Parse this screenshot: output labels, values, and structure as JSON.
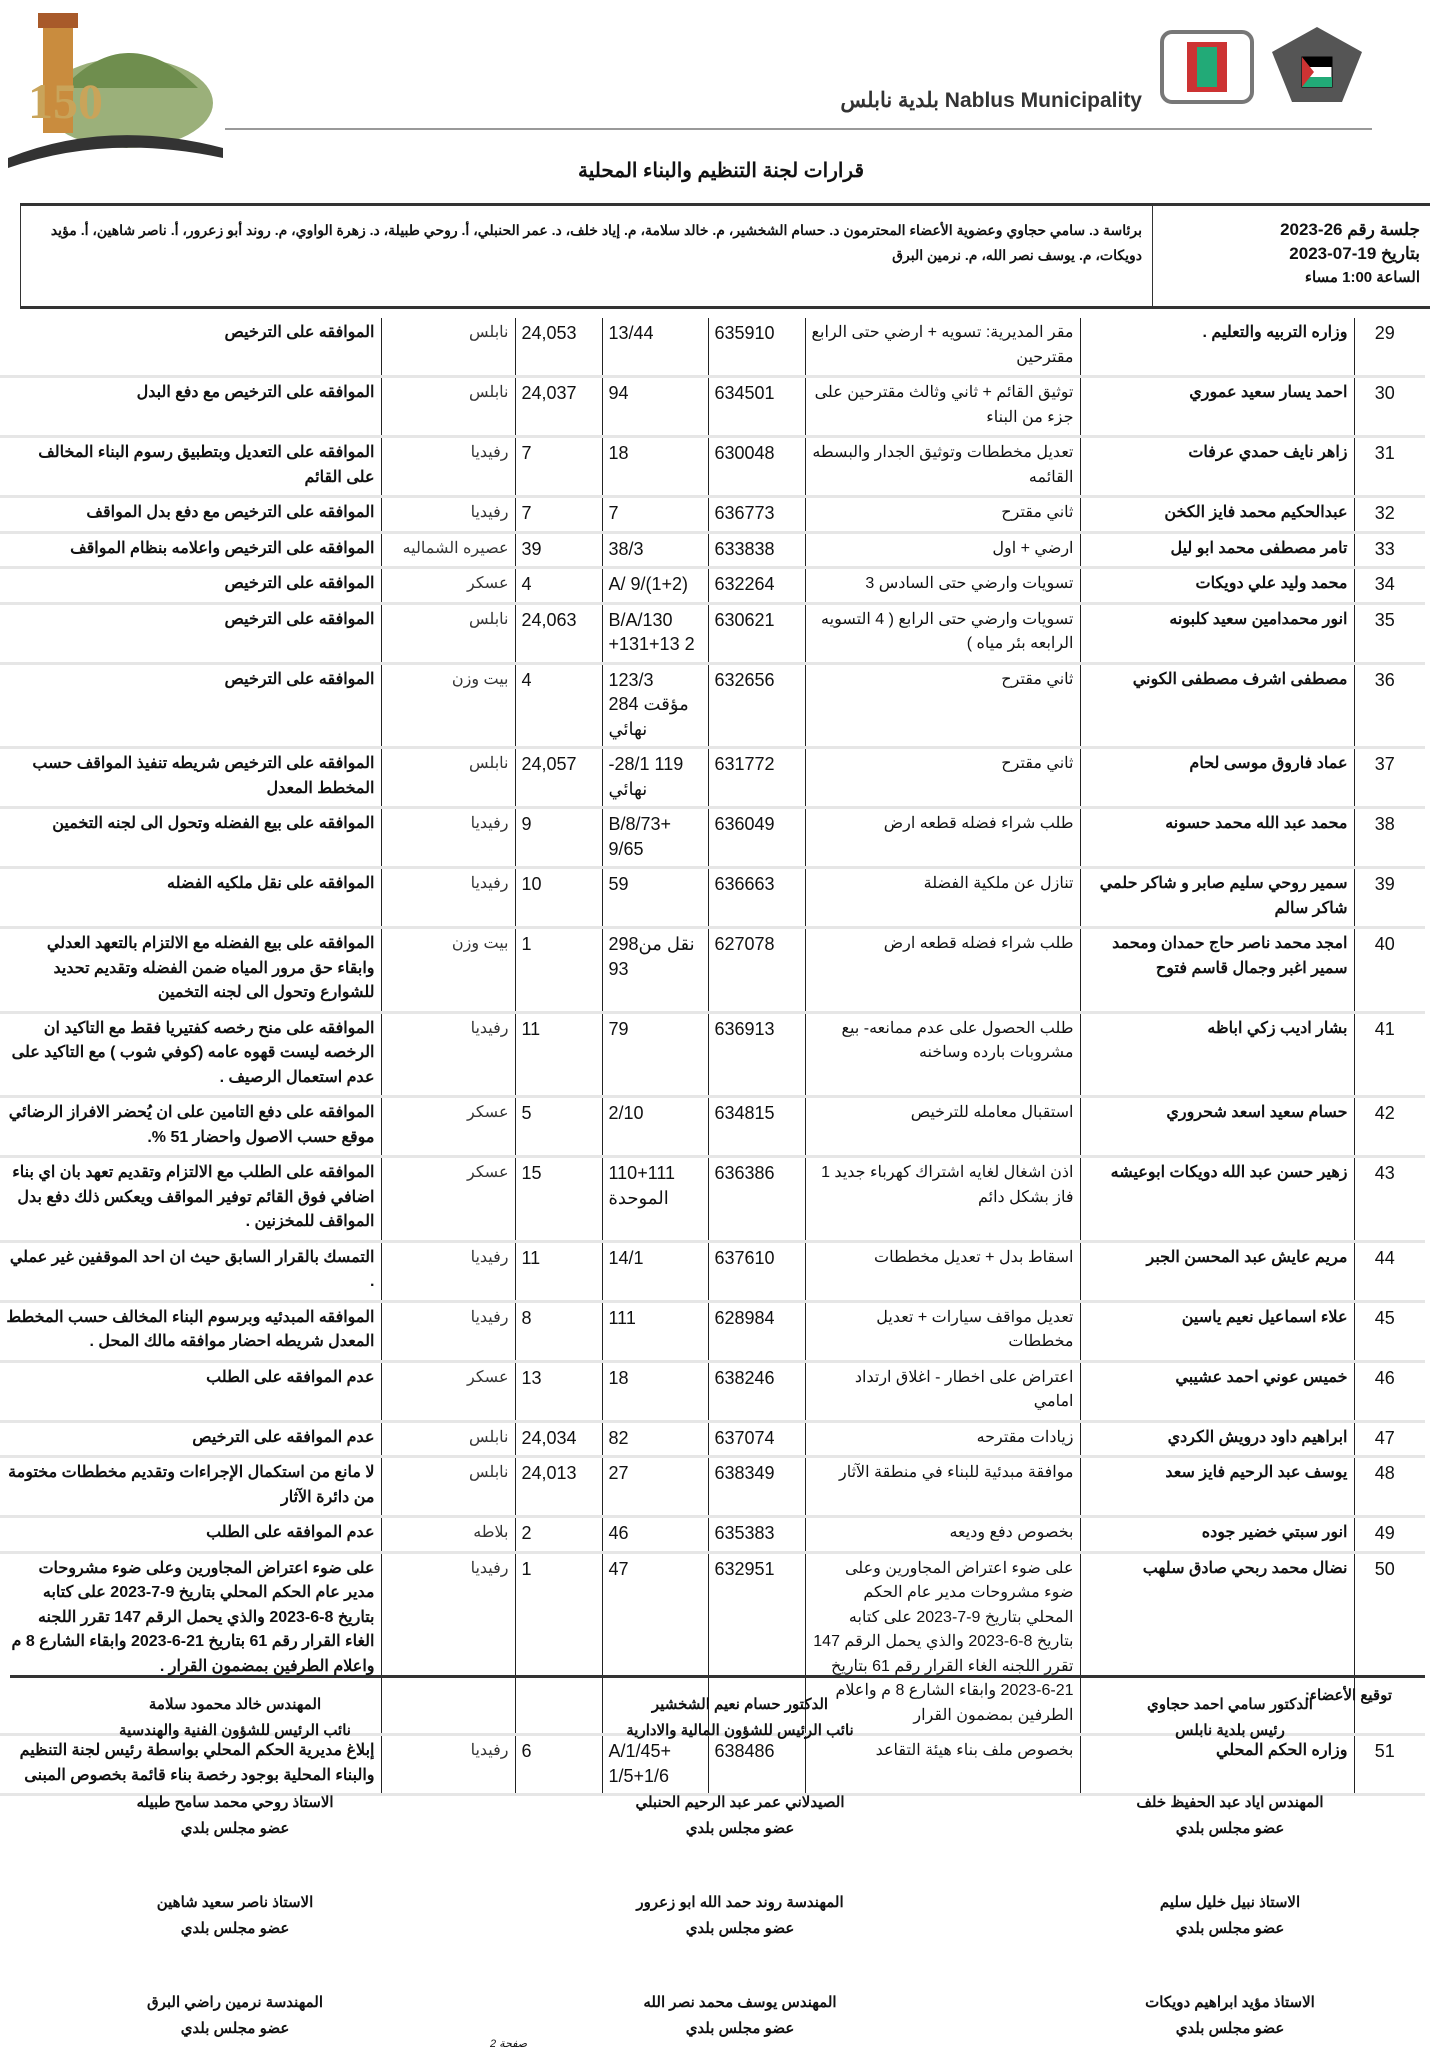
{
  "header": {
    "municipality": "Nablus Municipality بلدية نابلس",
    "title": "قرارات لجنة التنظيم والبناء المحلية"
  },
  "session": {
    "number": "جلسة رقم 26-2023",
    "date": "بتاريخ 19-07-2023",
    "time": "الساعة 1:00 مساء",
    "members": "برئاسة د. سامي حجاوي وعضوية الأعضاء المحترمون د. حسام الشخشير، م. خالد سلامة، م. إياد خلف، د. عمر الحنبلي، أ. روحي طبيلة، د. زهرة الواوي، م. روند أبو زعرور، أ. ناصر شاهين، أ. مؤيد دويكات، م. يوسف نصر الله، م. نرمين البرق"
  },
  "rows": [
    {
      "n": "29",
      "name": "وزاره التربيه والتعليم .",
      "request": "مقر المديرية: تسويه + ارضي حتى الرابع مقترحين",
      "file": "635910",
      "parcel": "13/44",
      "basin": "24,053",
      "locality": "نابلس",
      "decision": "الموافقه على الترخيص"
    },
    {
      "n": "30",
      "name": "احمد يسار سعيد عموري",
      "request": "توثيق القائم + ثاني وثالث مقترحين على جزء من البناء",
      "file": "634501",
      "parcel": "94",
      "basin": "24,037",
      "locality": "نابلس",
      "decision": "الموافقه على الترخيص مع دفع البدل"
    },
    {
      "n": "31",
      "name": "زاهر نايف حمدي عرفات",
      "request": "تعديل مخططات وتوثيق الجدار والبسطه القائمه",
      "file": "630048",
      "parcel": "18",
      "basin": "7",
      "locality": "رفيديا",
      "decision": "الموافقه على التعديل وبتطبيق رسوم البناء المخالف على القائم"
    },
    {
      "n": "32",
      "name": "عبدالحكيم محمد فايز الكخن",
      "request": "ثاني مقترح",
      "file": "636773",
      "parcel": "7",
      "basin": "7",
      "locality": "رفيديا",
      "decision": "الموافقه على الترخيص مع دفع بدل المواقف"
    },
    {
      "n": "33",
      "name": "تامر مصطفى محمد ابو ليل",
      "request": "ارضي + اول",
      "file": "633838",
      "parcel": "38/3",
      "basin": "39",
      "locality": "عصيره الشماليه",
      "decision": "الموافقه على الترخيص واعلامه بنظام المواقف"
    },
    {
      "n": "34",
      "name": "محمد وليد علي دويكات",
      "request": "تسويات وارضي حتى السادس 3",
      "file": "632264",
      "parcel": "A/ 9/(1+2)",
      "basin": "4",
      "locality": "عسكر",
      "decision": "الموافقه على الترخيص"
    },
    {
      "n": "35",
      "name": "انور محمدامين سعيد كلبونه",
      "request": "تسويات وارضي حتى الرابع ( 4 التسويه الرابعه بئر مياه )",
      "file": "630621",
      "parcel": "B/A/130 +131+13 2",
      "basin": "24,063",
      "locality": "نابلس",
      "decision": "الموافقه على الترخيص"
    },
    {
      "n": "36",
      "name": "مصطفى اشرف مصطفى الكوني",
      "request": "ثاني مقترح",
      "file": "632656",
      "parcel": "123/3 مؤقت 284 نهائي",
      "basin": "4",
      "locality": "بيت وزن",
      "decision": "الموافقه على الترخيص"
    },
    {
      "n": "37",
      "name": "عماد فاروق موسى لحام",
      "request": "ثاني مقترح",
      "file": "631772",
      "parcel": "-28/1 119 نهائي",
      "basin": "24,057",
      "locality": "نابلس",
      "decision": "الموافقه على الترخيص شريطه تنفيذ المواقف حسب المخطط المعدل"
    },
    {
      "n": "38",
      "name": "محمد عبد الله محمد حسونه",
      "request": "طلب شراء فضله قطعه ارض",
      "file": "636049",
      "parcel": "B/8/73+ 9/65",
      "basin": "9",
      "locality": "رفيديا",
      "decision": "الموافقه على بيع الفضله وتحول الى لجنه التخمين"
    },
    {
      "n": "39",
      "name": "سمير روحي سليم صابر و شاكر حلمي شاكر سالم",
      "request": "تنازل عن ملكية الفضلة",
      "file": "636663",
      "parcel": "59",
      "basin": "10",
      "locality": "رفيديا",
      "decision": "الموافقه على نقل ملكيه الفضله"
    },
    {
      "n": "40",
      "name": "امجد محمد ناصر حاج حمدان ومحمد سمير اغبر وجمال قاسم فتوح",
      "request": "طلب شراء فضله قطعه ارض",
      "file": "627078",
      "parcel": "298نقل من 93",
      "basin": "1",
      "locality": "بيت وزن",
      "decision": "الموافقه على بيع الفضله مع الالتزام بالتعهد العدلي وابقاء حق مرور المياه ضمن الفضله وتقديم تحديد للشوارع وتحول الى لجنه التخمين"
    },
    {
      "n": "41",
      "name": "بشار اديب زكي اباظه",
      "request": "طلب الحصول على عدم ممانعه- بيع مشروبات بارده وساخنه",
      "file": "636913",
      "parcel": "79",
      "basin": "11",
      "locality": "رفيديا",
      "decision": "الموافقه على منح رخصه كفتيريا فقط مع التاكيد ان الرخصه ليست قهوه عامه (كوفي شوب ) مع التاكيد على عدم استعمال الرصيف ."
    },
    {
      "n": "42",
      "name": "حسام سعيد اسعد شحروري",
      "request": "استقبال معامله للترخيص",
      "file": "634815",
      "parcel": "2/10",
      "basin": "5",
      "locality": "عسكر",
      "decision": "الموافقه على دفع التامين على ان يُحضر الافراز الرضائي موقع حسب الاصول واحضار 51 %."
    },
    {
      "n": "43",
      "name": "زهير حسن عبد الله دويكات ابوعيشه",
      "request": "اذن اشغال لغايه اشتراك كهرباء جديد 1 فاز بشكل دائم",
      "file": "636386",
      "parcel": "110+111 الموحدة",
      "basin": "15",
      "locality": "عسكر",
      "decision": "الموافقه على الطلب مع الالتزام وتقديم تعهد بان اي بناء اضافي فوق القائم توفير المواقف ويعكس ذلك دفع بدل المواقف للمخزنين ."
    },
    {
      "n": "44",
      "name": "مريم عايش عبد المحسن الجبر",
      "request": "اسقاط بدل + تعديل مخططات",
      "file": "637610",
      "parcel": "14/1",
      "basin": "11",
      "locality": "رفيديا",
      "decision": "التمسك بالقرار السابق حيث ان احد الموقفين غير عملي ."
    },
    {
      "n": "45",
      "name": "علاء اسماعيل نعيم ياسين",
      "request": "تعديل مواقف سيارات + تعديل مخططات",
      "file": "628984",
      "parcel": "111",
      "basin": "8",
      "locality": "رفيديا",
      "decision": "الموافقه المبدئيه وبرسوم البناء المخالف حسب المخطط المعدل شريطه احضار موافقه مالك المحل ."
    },
    {
      "n": "46",
      "name": "خميس عوني احمد عشيبي",
      "request": "اعتراض على اخطار - اغلاق ارتداد امامي",
      "file": "638246",
      "parcel": "18",
      "basin": "13",
      "locality": "عسكر",
      "decision": "عدم الموافقه على الطلب"
    },
    {
      "n": "47",
      "name": "ابراهيم داود درويش الكردي",
      "request": "زيادات مقترحه",
      "file": "637074",
      "parcel": "82",
      "basin": "24,034",
      "locality": "نابلس",
      "decision": "عدم الموافقه على الترخيص"
    },
    {
      "n": "48",
      "name": "يوسف عبد الرحيم فايز سعد",
      "request": "موافقة مبدئية للبناء في منطقة الآثار",
      "file": "638349",
      "parcel": "27",
      "basin": "24,013",
      "locality": "نابلس",
      "decision": "لا مانع من استكمال الإجراءات وتقديم مخططات مختومة من دائرة الآثار"
    },
    {
      "n": "49",
      "name": "انور سبتي خضير جوده",
      "request": "بخصوص دفع وديعه",
      "file": "635383",
      "parcel": "46",
      "basin": "2",
      "locality": "بلاطه",
      "decision": "عدم الموافقه على الطلب"
    },
    {
      "n": "50",
      "name": "نضال محمد ربحي صادق سلهب",
      "request": "على ضوء اعتراض المجاورين وعلى ضوء مشروحات مدير عام الحكم المحلي بتاريخ 9-7-2023 على كتابه بتاريخ 8-6-2023 والذي يحمل الرقم 147 تقرر اللجنه الغاء القرار رقم 61 بتاريخ 21-6-2023 وابقاء الشارع 8 م واعلام الطرفين بمضمون القرار",
      "file": "632951",
      "parcel": "47",
      "basin": "1",
      "locality": "رفيديا",
      "decision": "على ضوء اعتراض المجاورين وعلى ضوء مشروحات مدير عام الحكم المحلي بتاريخ 9-7-2023 على كتابه بتاريخ 8-6-2023 والذي يحمل الرقم 147 تقرر اللجنه الغاء القرار رقم 61 بتاريخ 21-6-2023 وابقاء الشارع 8 م واعلام الطرفين بمضمون القرار ."
    },
    {
      "n": "51",
      "name": "وزاره الحكم المحلي",
      "request": "بخصوص ملف بناء هيئة التقاعد",
      "file": "638486",
      "parcel": "A/1/45+ 1/5+1/6",
      "basin": "6",
      "locality": "رفيديا",
      "decision": "إبلاغ مديرية الحكم المحلي بواسطة رئيس لجنة التنظيم والبناء المحلية بوجود رخصة بناء قائمة بخصوص المبنى"
    }
  ],
  "signatures": {
    "label": "توقيع الأعضاء:",
    "items": [
      {
        "name": "الدكتور سامي احمد حجاوي",
        "role": "رئيس بلدية نابلس"
      },
      {
        "name": "الدكتور حسام نعيم الشخشير",
        "role": "نائب الرئيس للشؤون المالية والادارية"
      },
      {
        "name": "المهندس خالد محمود سلامة",
        "role": "نائب الرئيس للشؤون الفنية والهندسية"
      },
      {
        "name": "المهندس اياد عبد الحفيظ خلف",
        "role": "عضو مجلس بلدي"
      },
      {
        "name": "الصيدلاني عمر عبد الرحيم الحنبلي",
        "role": "عضو مجلس بلدي"
      },
      {
        "name": "الاستاذ روحي محمد سامح طبيله",
        "role": "عضو مجلس بلدي"
      },
      {
        "name": "الاستاذ نبيل خليل سليم",
        "role": "عضو مجلس بلدي"
      },
      {
        "name": "المهندسة روند حمد الله ابو زعرور",
        "role": "عضو مجلس بلدي"
      },
      {
        "name": "الاستاذ ناصر سعيد شاهين",
        "role": "عضو مجلس بلدي"
      },
      {
        "name": "الاستاذ مؤيد ابراهيم دويكات",
        "role": "عضو مجلس بلدي"
      },
      {
        "name": "المهندس يوسف محمد نصر الله",
        "role": "عضو مجلس بلدي"
      },
      {
        "name": "المهندسة نرمين راضي البرق",
        "role": "عضو مجلس بلدي"
      }
    ]
  },
  "footer": {
    "page": "صفحة 2"
  }
}
